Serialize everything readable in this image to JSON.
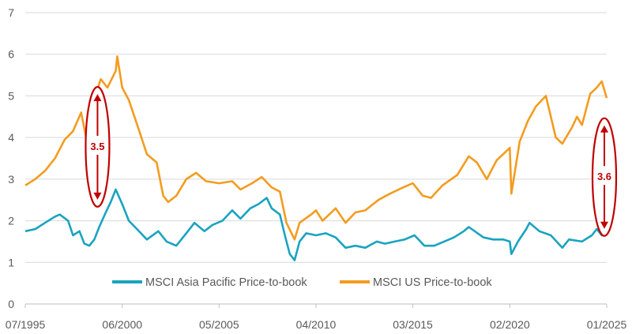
{
  "chart_data": {
    "type": "line",
    "title": "",
    "xlabel": "",
    "ylabel": "",
    "xlim": [
      "1995-07-01",
      "2025-01-01"
    ],
    "ylim": [
      0,
      7
    ],
    "yticks": [
      "0",
      "1",
      "2",
      "3",
      "4",
      "5",
      "6",
      "7"
    ],
    "xticks": [
      {
        "label": "07/1995",
        "date": "1995-07-01"
      },
      {
        "label": "06/2000",
        "date": "2000-06-01"
      },
      {
        "label": "05/2005",
        "date": "2005-05-01"
      },
      {
        "label": "04/2010",
        "date": "2010-04-01"
      },
      {
        "label": "03/2015",
        "date": "2015-03-01"
      },
      {
        "label": "02/2020",
        "date": "2020-02-01"
      },
      {
        "label": "01/2025",
        "date": "2025-01-01"
      }
    ],
    "grid": true,
    "legend_position": "bottom",
    "series": [
      {
        "name": "MSCI Asia Pacific Price-to-book",
        "color": "#1aa3c0",
        "points": [
          [
            "1995-07-01",
            1.75
          ],
          [
            "1996-01-01",
            1.8
          ],
          [
            "1996-07-01",
            1.95
          ],
          [
            "1997-01-01",
            2.1
          ],
          [
            "1997-04-01",
            2.15
          ],
          [
            "1997-09-01",
            2.0
          ],
          [
            "1997-12-01",
            1.65
          ],
          [
            "1998-04-01",
            1.75
          ],
          [
            "1998-07-01",
            1.45
          ],
          [
            "1998-10-01",
            1.4
          ],
          [
            "1999-01-01",
            1.55
          ],
          [
            "1999-04-01",
            1.85
          ],
          [
            "1999-08-01",
            2.2
          ],
          [
            "1999-11-01",
            2.45
          ],
          [
            "2000-02-01",
            2.75
          ],
          [
            "2000-06-01",
            2.4
          ],
          [
            "2000-10-01",
            2.0
          ],
          [
            "2001-03-01",
            1.8
          ],
          [
            "2001-09-01",
            1.55
          ],
          [
            "2002-04-01",
            1.75
          ],
          [
            "2002-09-01",
            1.5
          ],
          [
            "2003-03-01",
            1.4
          ],
          [
            "2003-09-01",
            1.7
          ],
          [
            "2004-02-01",
            1.95
          ],
          [
            "2004-08-01",
            1.75
          ],
          [
            "2005-01-01",
            1.9
          ],
          [
            "2005-07-01",
            2.0
          ],
          [
            "2006-01-01",
            2.25
          ],
          [
            "2006-06-01",
            2.05
          ],
          [
            "2006-12-01",
            2.3
          ],
          [
            "2007-05-01",
            2.4
          ],
          [
            "2007-10-01",
            2.55
          ],
          [
            "2008-01-01",
            2.3
          ],
          [
            "2008-06-01",
            2.15
          ],
          [
            "2008-09-01",
            1.65
          ],
          [
            "2008-12-01",
            1.2
          ],
          [
            "2009-03-01",
            1.05
          ],
          [
            "2009-06-01",
            1.5
          ],
          [
            "2009-10-01",
            1.7
          ],
          [
            "2010-04-01",
            1.65
          ],
          [
            "2010-10-01",
            1.7
          ],
          [
            "2011-04-01",
            1.6
          ],
          [
            "2011-10-01",
            1.35
          ],
          [
            "2012-04-01",
            1.4
          ],
          [
            "2012-10-01",
            1.35
          ],
          [
            "2013-05-01",
            1.5
          ],
          [
            "2013-10-01",
            1.45
          ],
          [
            "2014-04-01",
            1.5
          ],
          [
            "2014-10-01",
            1.55
          ],
          [
            "2015-04-01",
            1.65
          ],
          [
            "2015-10-01",
            1.4
          ],
          [
            "2016-04-01",
            1.4
          ],
          [
            "2016-10-01",
            1.5
          ],
          [
            "2017-04-01",
            1.6
          ],
          [
            "2017-10-01",
            1.75
          ],
          [
            "2018-01-01",
            1.85
          ],
          [
            "2018-10-01",
            1.6
          ],
          [
            "2019-04-01",
            1.55
          ],
          [
            "2019-10-01",
            1.55
          ],
          [
            "2020-02-01",
            1.5
          ],
          [
            "2020-03-01",
            1.2
          ],
          [
            "2020-07-01",
            1.5
          ],
          [
            "2020-12-01",
            1.8
          ],
          [
            "2021-02-01",
            1.95
          ],
          [
            "2021-08-01",
            1.75
          ],
          [
            "2022-03-01",
            1.65
          ],
          [
            "2022-10-01",
            1.35
          ],
          [
            "2023-02-01",
            1.55
          ],
          [
            "2023-10-01",
            1.5
          ],
          [
            "2024-04-01",
            1.65
          ],
          [
            "2024-07-01",
            1.8
          ],
          [
            "2024-10-01",
            1.65
          ],
          [
            "2025-01-01",
            1.75
          ]
        ]
      },
      {
        "name": "MSCI US Price-to-book",
        "color": "#f39c1f",
        "points": [
          [
            "1995-07-01",
            2.85
          ],
          [
            "1996-01-01",
            3.0
          ],
          [
            "1996-07-01",
            3.2
          ],
          [
            "1997-01-01",
            3.5
          ],
          [
            "1997-07-01",
            3.95
          ],
          [
            "1997-12-01",
            4.15
          ],
          [
            "1998-05-01",
            4.6
          ],
          [
            "1998-08-01",
            4.0
          ],
          [
            "1998-10-01",
            4.3
          ],
          [
            "1999-01-01",
            4.95
          ],
          [
            "1999-05-01",
            5.4
          ],
          [
            "1999-09-01",
            5.2
          ],
          [
            "2000-02-01",
            5.6
          ],
          [
            "2000-03-01",
            5.95
          ],
          [
            "2000-06-01",
            5.2
          ],
          [
            "2000-10-01",
            4.9
          ],
          [
            "2001-04-01",
            4.2
          ],
          [
            "2001-09-01",
            3.6
          ],
          [
            "2002-03-01",
            3.4
          ],
          [
            "2002-07-01",
            2.6
          ],
          [
            "2002-10-01",
            2.45
          ],
          [
            "2003-03-01",
            2.6
          ],
          [
            "2003-09-01",
            3.0
          ],
          [
            "2004-03-01",
            3.15
          ],
          [
            "2004-09-01",
            2.95
          ],
          [
            "2005-05-01",
            2.9
          ],
          [
            "2006-01-01",
            2.95
          ],
          [
            "2006-06-01",
            2.75
          ],
          [
            "2007-01-01",
            2.9
          ],
          [
            "2007-07-01",
            3.05
          ],
          [
            "2008-01-01",
            2.8
          ],
          [
            "2008-06-01",
            2.7
          ],
          [
            "2008-10-01",
            1.95
          ],
          [
            "2009-03-01",
            1.55
          ],
          [
            "2009-06-01",
            1.95
          ],
          [
            "2010-01-01",
            2.15
          ],
          [
            "2010-04-01",
            2.25
          ],
          [
            "2010-08-01",
            2.0
          ],
          [
            "2011-04-01",
            2.3
          ],
          [
            "2011-10-01",
            1.95
          ],
          [
            "2012-04-01",
            2.2
          ],
          [
            "2012-10-01",
            2.25
          ],
          [
            "2013-06-01",
            2.5
          ],
          [
            "2014-01-01",
            2.65
          ],
          [
            "2014-09-01",
            2.8
          ],
          [
            "2015-03-01",
            2.9
          ],
          [
            "2015-09-01",
            2.6
          ],
          [
            "2016-02-01",
            2.55
          ],
          [
            "2016-09-01",
            2.85
          ],
          [
            "2017-06-01",
            3.1
          ],
          [
            "2018-01-01",
            3.55
          ],
          [
            "2018-06-01",
            3.4
          ],
          [
            "2018-12-01",
            3.0
          ],
          [
            "2019-06-01",
            3.45
          ],
          [
            "2020-02-01",
            3.75
          ],
          [
            "2020-03-01",
            2.65
          ],
          [
            "2020-08-01",
            3.9
          ],
          [
            "2021-01-01",
            4.4
          ],
          [
            "2021-06-01",
            4.75
          ],
          [
            "2021-12-01",
            5.0
          ],
          [
            "2022-06-01",
            4.0
          ],
          [
            "2022-10-01",
            3.85
          ],
          [
            "2023-04-01",
            4.25
          ],
          [
            "2023-07-01",
            4.5
          ],
          [
            "2023-10-01",
            4.3
          ],
          [
            "2024-03-01",
            5.05
          ],
          [
            "2024-07-01",
            5.2
          ],
          [
            "2024-10-01",
            5.35
          ],
          [
            "2025-01-01",
            4.95
          ]
        ]
      }
    ],
    "annotations": [
      {
        "label": "3.5",
        "date": "1999-03-01",
        "y_low": 2.45,
        "y_high": 5.1,
        "color": "#c00000"
      },
      {
        "label": "3.6",
        "date": "2025-01-01",
        "y_low": 1.75,
        "y_high": 4.35,
        "color": "#c00000"
      }
    ]
  }
}
